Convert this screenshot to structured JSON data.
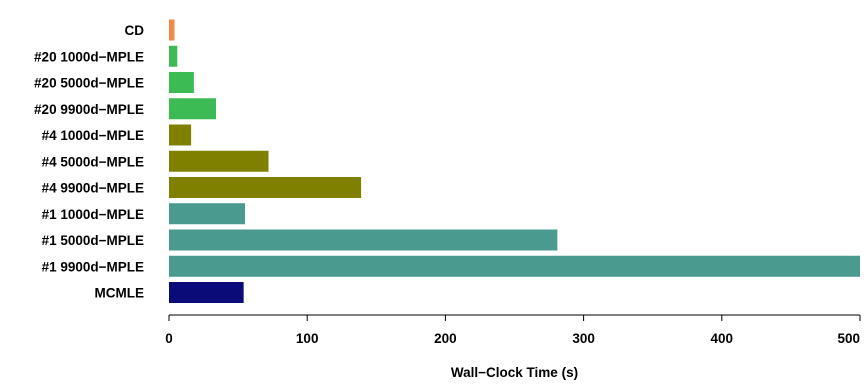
{
  "chart_data": {
    "type": "bar",
    "orientation": "horizontal",
    "title": "",
    "xlabel": "Wall−Clock Time (s)",
    "ylabel": "",
    "xlim": [
      0,
      500
    ],
    "xticks": [
      0,
      100,
      200,
      300,
      400,
      500
    ],
    "grid": false,
    "legend": "none",
    "categories": [
      "CD",
      "#20 1000d−MPLE",
      "#20 5000d−MPLE",
      "#20 9900d−MPLE",
      "#4 1000d−MPLE",
      "#4 5000d−MPLE",
      "#4 9900d−MPLE",
      "#1 1000d−MPLE",
      "#1 5000d−MPLE",
      "#1 9900d−MPLE",
      "MCMLE"
    ],
    "values": [
      4,
      6,
      18,
      34,
      16,
      72,
      139,
      55,
      281,
      500,
      54
    ],
    "colors": [
      "#f08a44",
      "#3cba54",
      "#3cba54",
      "#3cba54",
      "#808000",
      "#808000",
      "#808000",
      "#4a9a90",
      "#4a9a90",
      "#4a9a90",
      "#0a0a78"
    ]
  }
}
